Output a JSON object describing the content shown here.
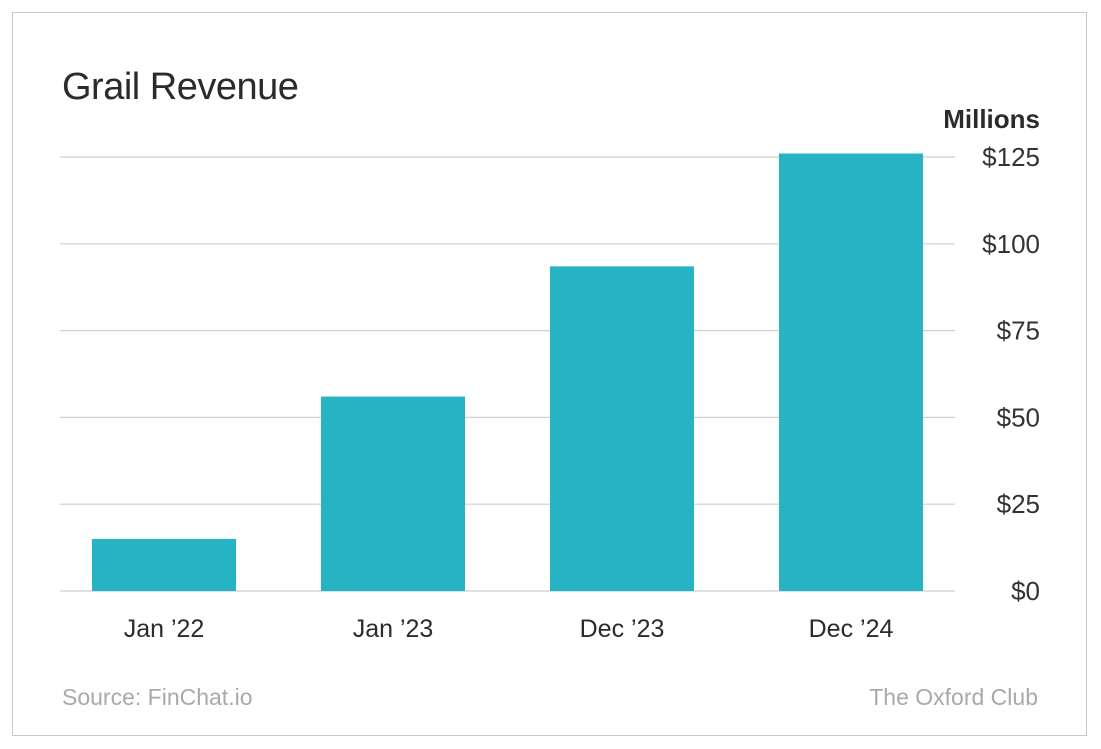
{
  "chart_data": {
    "type": "bar",
    "title": "Grail Revenue",
    "unit_label": "Millions",
    "categories": [
      "Jan ’22",
      "Jan ’23",
      "Dec ’23",
      "Dec ’24"
    ],
    "values": [
      15,
      56,
      93.5,
      126
    ],
    "ylim": [
      0,
      125
    ],
    "yticks": [
      0,
      25,
      50,
      75,
      100,
      125
    ],
    "ytick_labels": [
      "$0",
      "$25",
      "$50",
      "$75",
      "$100",
      "$125"
    ],
    "y_axis_position": "right",
    "grid": true,
    "bar_color": "#26b3c3",
    "grid_color": "#cfcfcf"
  },
  "footer": {
    "source": "Source: FinChat.io",
    "brand": "The Oxford Club"
  },
  "colors": {
    "title": "#2b2b2b",
    "footer_text": "#a9a9a9",
    "border": "#c8c8c8"
  }
}
